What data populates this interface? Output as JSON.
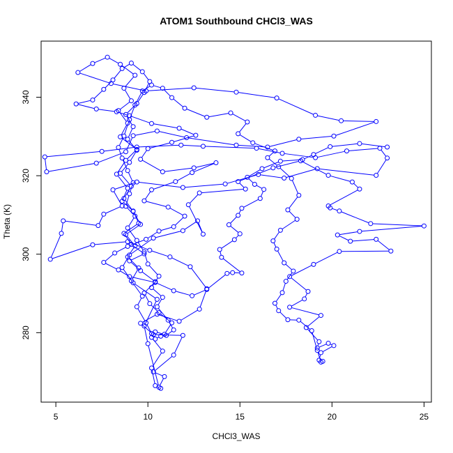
{
  "chart_data": {
    "type": "scatter",
    "title": "ATOM1 Southbound CHCl3_WAS",
    "xlabel": "CHCl3_WAS",
    "ylabel": "Theta (K)",
    "xlim": [
      4.2,
      25.4
    ],
    "ylim": [
      262.3,
      354.3
    ],
    "xticks": [
      5,
      10,
      15,
      20,
      25
    ],
    "yticks": [
      280,
      300,
      320,
      340
    ],
    "connect_points": true,
    "series": [
      {
        "color": "#0000ff",
        "points": [
          [
            10.7,
            265.8
          ],
          [
            10.4,
            266.5
          ],
          [
            10.2,
            271.0
          ],
          [
            10.8,
            275.3
          ],
          [
            10.2,
            278.8
          ],
          [
            10.4,
            280.2
          ],
          [
            10.9,
            279.6
          ],
          [
            11.3,
            282.5
          ],
          [
            10.6,
            285.1
          ],
          [
            10.1,
            287.4
          ],
          [
            9.8,
            290.1
          ],
          [
            10.4,
            293.0
          ],
          [
            9.6,
            295.8
          ],
          [
            9.0,
            298.3
          ],
          [
            9.8,
            300.1
          ],
          [
            9.1,
            302.5
          ],
          [
            8.7,
            305.3
          ],
          [
            9.5,
            307.9
          ],
          [
            9.2,
            311.0
          ],
          [
            8.6,
            313.5
          ],
          [
            8.9,
            316.8
          ],
          [
            8.3,
            320.4
          ],
          [
            8.8,
            323.9
          ],
          [
            9.4,
            326.7
          ],
          [
            8.5,
            329.9
          ],
          [
            8.9,
            333.4
          ],
          [
            8.4,
            336.6
          ],
          [
            9.1,
            339.1
          ],
          [
            8.7,
            342.3
          ],
          [
            9.3,
            345.6
          ],
          [
            8.5,
            348.4
          ],
          [
            7.8,
            350.2
          ],
          [
            7.0,
            348.6
          ],
          [
            6.2,
            346.3
          ],
          [
            8.0,
            343.5
          ],
          [
            9.9,
            341.6
          ],
          [
            12.5,
            342.4
          ],
          [
            14.8,
            341.3
          ],
          [
            17.0,
            339.8
          ],
          [
            19.1,
            335.4
          ],
          [
            20.5,
            334.0
          ],
          [
            22.4,
            333.8
          ],
          [
            20.1,
            330.1
          ],
          [
            18.2,
            329.3
          ],
          [
            16.5,
            327.3
          ],
          [
            14.8,
            327.8
          ],
          [
            12.1,
            329.7
          ],
          [
            10.5,
            331.4
          ],
          [
            9.2,
            330.2
          ],
          [
            8.8,
            326.1
          ],
          [
            7.2,
            323.2
          ],
          [
            4.5,
            321.0
          ],
          [
            4.4,
            324.8
          ],
          [
            7.5,
            326.2
          ],
          [
            9.4,
            327.3
          ],
          [
            11.8,
            327.8
          ],
          [
            13.0,
            327.5
          ],
          [
            15.9,
            327.0
          ],
          [
            17.3,
            325.7
          ],
          [
            19.1,
            324.6
          ],
          [
            20.8,
            326.3
          ],
          [
            22.6,
            327.0
          ],
          [
            23.0,
            324.5
          ],
          [
            22.4,
            320.1
          ],
          [
            19.2,
            321.8
          ],
          [
            17.4,
            319.4
          ],
          [
            16.0,
            320.3
          ],
          [
            14.2,
            317.9
          ],
          [
            11.9,
            317.0
          ],
          [
            9.4,
            318.4
          ],
          [
            8.1,
            316.4
          ],
          [
            8.6,
            312.3
          ],
          [
            7.6,
            310.2
          ],
          [
            7.3,
            307.3
          ],
          [
            5.4,
            308.5
          ],
          [
            5.3,
            305.3
          ],
          [
            4.7,
            298.7
          ],
          [
            7.0,
            302.4
          ],
          [
            8.9,
            303.2
          ],
          [
            10.1,
            301.0
          ],
          [
            11.2,
            299.3
          ],
          [
            12.3,
            296.8
          ],
          [
            13.2,
            291.2
          ],
          [
            12.8,
            286.0
          ],
          [
            11.7,
            282.9
          ],
          [
            10.5,
            284.7
          ],
          [
            9.6,
            282.4
          ],
          [
            10.3,
            279.5
          ],
          [
            11.9,
            279.3
          ],
          [
            11.4,
            274.3
          ],
          [
            10.3,
            270.0
          ],
          [
            10.9,
            268.8
          ],
          [
            10.6,
            266.1
          ],
          [
            10.0,
            277.2
          ],
          [
            9.8,
            281.7
          ],
          [
            10.5,
            288.5
          ],
          [
            9.2,
            292.7
          ],
          [
            8.6,
            296.6
          ],
          [
            9.0,
            299.8
          ],
          [
            10.3,
            304.1
          ],
          [
            11.9,
            306.0
          ],
          [
            12.7,
            308.5
          ],
          [
            13.0,
            305.1
          ],
          [
            12.2,
            312.6
          ],
          [
            12.8,
            315.6
          ],
          [
            15.3,
            316.6
          ],
          [
            14.9,
            318.5
          ],
          [
            16.8,
            322.0
          ],
          [
            18.3,
            323.8
          ],
          [
            19.8,
            320.1
          ],
          [
            21.1,
            318.4
          ],
          [
            21.5,
            316.6
          ],
          [
            19.8,
            312.3
          ],
          [
            19.9,
            311.8
          ],
          [
            20.4,
            311.0
          ],
          [
            22.1,
            307.8
          ],
          [
            25.0,
            307.2
          ],
          [
            21.5,
            305.8
          ],
          [
            20.3,
            304.9
          ],
          [
            21.0,
            303.3
          ],
          [
            22.4,
            303.8
          ],
          [
            23.2,
            300.8
          ],
          [
            20.4,
            300.7
          ],
          [
            19.0,
            297.4
          ],
          [
            17.7,
            294.3
          ],
          [
            18.7,
            290.5
          ],
          [
            18.5,
            288.6
          ],
          [
            17.7,
            286.5
          ],
          [
            19.4,
            284.4
          ],
          [
            18.6,
            281.3
          ],
          [
            19.3,
            277.7
          ],
          [
            19.2,
            276.1
          ],
          [
            19.8,
            277.3
          ],
          [
            20.1,
            276.7
          ],
          [
            19.4,
            274.9
          ],
          [
            19.3,
            273.0
          ],
          [
            19.5,
            272.7
          ],
          [
            19.4,
            272.5
          ],
          [
            19.2,
            275.5
          ],
          [
            18.9,
            280.5
          ],
          [
            18.2,
            283.2
          ],
          [
            17.6,
            283.3
          ],
          [
            17.1,
            285.6
          ],
          [
            16.9,
            287.5
          ],
          [
            17.3,
            290.2
          ],
          [
            17.5,
            293.1
          ],
          [
            17.9,
            295.7
          ],
          [
            17.4,
            297.8
          ],
          [
            17.0,
            301.3
          ],
          [
            16.8,
            303.4
          ],
          [
            17.2,
            306.1
          ],
          [
            18.1,
            308.9
          ],
          [
            17.6,
            311.3
          ],
          [
            18.2,
            315.0
          ],
          [
            17.8,
            319.3
          ],
          [
            17.1,
            322.3
          ],
          [
            16.5,
            324.6
          ],
          [
            16.9,
            326.3
          ],
          [
            15.7,
            328.4
          ],
          [
            14.9,
            330.7
          ],
          [
            15.4,
            333.7
          ],
          [
            14.5,
            336.0
          ],
          [
            13.2,
            334.9
          ],
          [
            12.0,
            337.2
          ],
          [
            11.3,
            339.9
          ],
          [
            10.8,
            342.3
          ],
          [
            10.2,
            343.1
          ],
          [
            9.7,
            341.6
          ],
          [
            9.3,
            338.0
          ],
          [
            9.0,
            334.3
          ],
          [
            8.7,
            330.1
          ],
          [
            8.4,
            327.2
          ],
          [
            8.6,
            324.5
          ],
          [
            8.9,
            321.3
          ],
          [
            9.2,
            318.2
          ],
          [
            9.0,
            315.4
          ],
          [
            8.8,
            312.2
          ],
          [
            9.3,
            309.7
          ],
          [
            8.9,
            306.7
          ],
          [
            9.4,
            303.5
          ],
          [
            9.8,
            300.6
          ],
          [
            10.0,
            297.5
          ],
          [
            10.6,
            294.4
          ],
          [
            10.2,
            291.5
          ],
          [
            10.8,
            289.0
          ],
          [
            10.5,
            286.6
          ],
          [
            11.1,
            283.2
          ],
          [
            11.4,
            280.7
          ],
          [
            11.0,
            279.3
          ],
          [
            10.7,
            279.1
          ],
          [
            10.4,
            278.4
          ],
          [
            10.2,
            279.8
          ],
          [
            9.9,
            282.5
          ],
          [
            9.4,
            286.6
          ],
          [
            9.7,
            289.3
          ],
          [
            9.1,
            293.2
          ],
          [
            9.5,
            296.5
          ],
          [
            8.9,
            299.3
          ],
          [
            9.3,
            302.1
          ],
          [
            8.8,
            305.0
          ],
          [
            9.6,
            307.6
          ],
          [
            9.2,
            310.9
          ],
          [
            8.7,
            314.2
          ],
          [
            9.1,
            317.3
          ],
          [
            8.5,
            320.6
          ],
          [
            9.0,
            323.4
          ],
          [
            9.4,
            326.5
          ],
          [
            8.9,
            329.3
          ],
          [
            9.2,
            332.5
          ],
          [
            8.8,
            335.6
          ],
          [
            9.4,
            338.4
          ],
          [
            9.8,
            341.2
          ],
          [
            10.1,
            344.0
          ],
          [
            9.7,
            346.5
          ],
          [
            9.1,
            348.7
          ],
          [
            8.6,
            347.3
          ],
          [
            8.1,
            344.4
          ],
          [
            7.6,
            342.0
          ],
          [
            7.0,
            339.3
          ],
          [
            6.1,
            338.3
          ],
          [
            7.2,
            337.0
          ],
          [
            8.3,
            336.3
          ],
          [
            9.0,
            335.3
          ],
          [
            10.2,
            333.3
          ],
          [
            11.7,
            332.1
          ],
          [
            12.6,
            330.3
          ],
          [
            11.3,
            328.5
          ],
          [
            10.0,
            326.9
          ],
          [
            9.6,
            324.2
          ],
          [
            10.8,
            321.0
          ],
          [
            12.5,
            322.0
          ],
          [
            13.7,
            323.3
          ],
          [
            12.4,
            320.8
          ],
          [
            11.5,
            318.5
          ],
          [
            10.2,
            316.4
          ],
          [
            9.8,
            313.6
          ],
          [
            11.1,
            312.0
          ],
          [
            12.0,
            309.7
          ],
          [
            11.4,
            307.0
          ],
          [
            10.6,
            305.9
          ],
          [
            9.9,
            303.8
          ],
          [
            8.9,
            302.0
          ],
          [
            8.2,
            300.3
          ],
          [
            7.6,
            297.9
          ],
          [
            8.4,
            296.0
          ],
          [
            9.0,
            294.3
          ],
          [
            10.4,
            292.8
          ],
          [
            11.4,
            290.7
          ],
          [
            12.4,
            289.4
          ],
          [
            13.2,
            291.0
          ],
          [
            14.3,
            295.1
          ],
          [
            14.6,
            295.3
          ],
          [
            15.1,
            295.2
          ],
          [
            14.0,
            299.2
          ],
          [
            13.9,
            301.2
          ],
          [
            14.7,
            303.7
          ],
          [
            15.0,
            305.2
          ],
          [
            14.4,
            307.5
          ],
          [
            14.9,
            309.9
          ],
          [
            15.1,
            311.7
          ],
          [
            16.1,
            314.2
          ],
          [
            16.3,
            316.5
          ],
          [
            15.8,
            317.8
          ],
          [
            15.4,
            319.6
          ],
          [
            16.2,
            321.8
          ],
          [
            17.2,
            323.7
          ],
          [
            18.4,
            324.1
          ],
          [
            19.0,
            325.4
          ],
          [
            19.9,
            327.4
          ],
          [
            21.5,
            328.2
          ],
          [
            23.0,
            327.3
          ]
        ]
      }
    ]
  }
}
